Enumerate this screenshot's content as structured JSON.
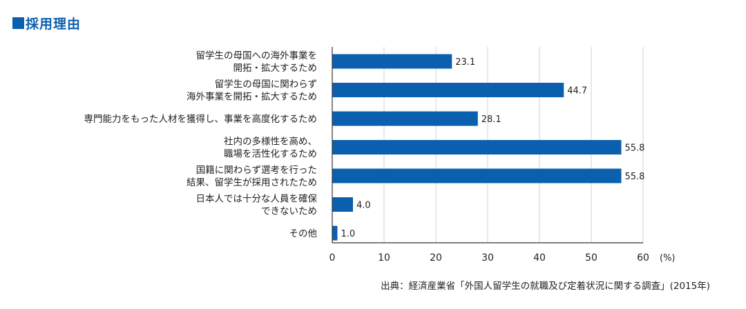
{
  "header": {
    "title": "採用理由"
  },
  "source": "出典：経済産業省「外国人留学生の就職及び定着状況に関する調査」(2015年)",
  "colors": {
    "bar": "#0a5fae",
    "title": "#0a5fae",
    "grid": "#d0d0d0",
    "axis": "#333333",
    "text": "#222222"
  },
  "chart_data": {
    "type": "bar",
    "orientation": "horizontal",
    "categories": [
      [
        "留学生の母国への海外事業を",
        "開拓・拡大するため"
      ],
      [
        "留学生の母国に関わらず",
        "海外事業を開拓・拡大するため"
      ],
      [
        "専門能力をもった人材を獲得し、事業を高度化するため"
      ],
      [
        "社内の多様性を高め、",
        "職場を活性化するため"
      ],
      [
        "国籍に関わらず選考を行った",
        "結果、留学生が採用されたため"
      ],
      [
        "日本人では十分な人員を確保",
        "できないため"
      ],
      [
        "その他"
      ]
    ],
    "values": [
      23.1,
      44.7,
      28.1,
      55.8,
      55.8,
      4.0,
      1.0
    ],
    "value_labels": [
      "23.1",
      "44.7",
      "28.1",
      "55.8",
      "55.8",
      "4.0",
      "1.0"
    ],
    "xlim": [
      0,
      60
    ],
    "xticks": [
      "0",
      "10",
      "20",
      "30",
      "40",
      "50",
      "60"
    ],
    "xunit": "(%)",
    "grid": true
  }
}
